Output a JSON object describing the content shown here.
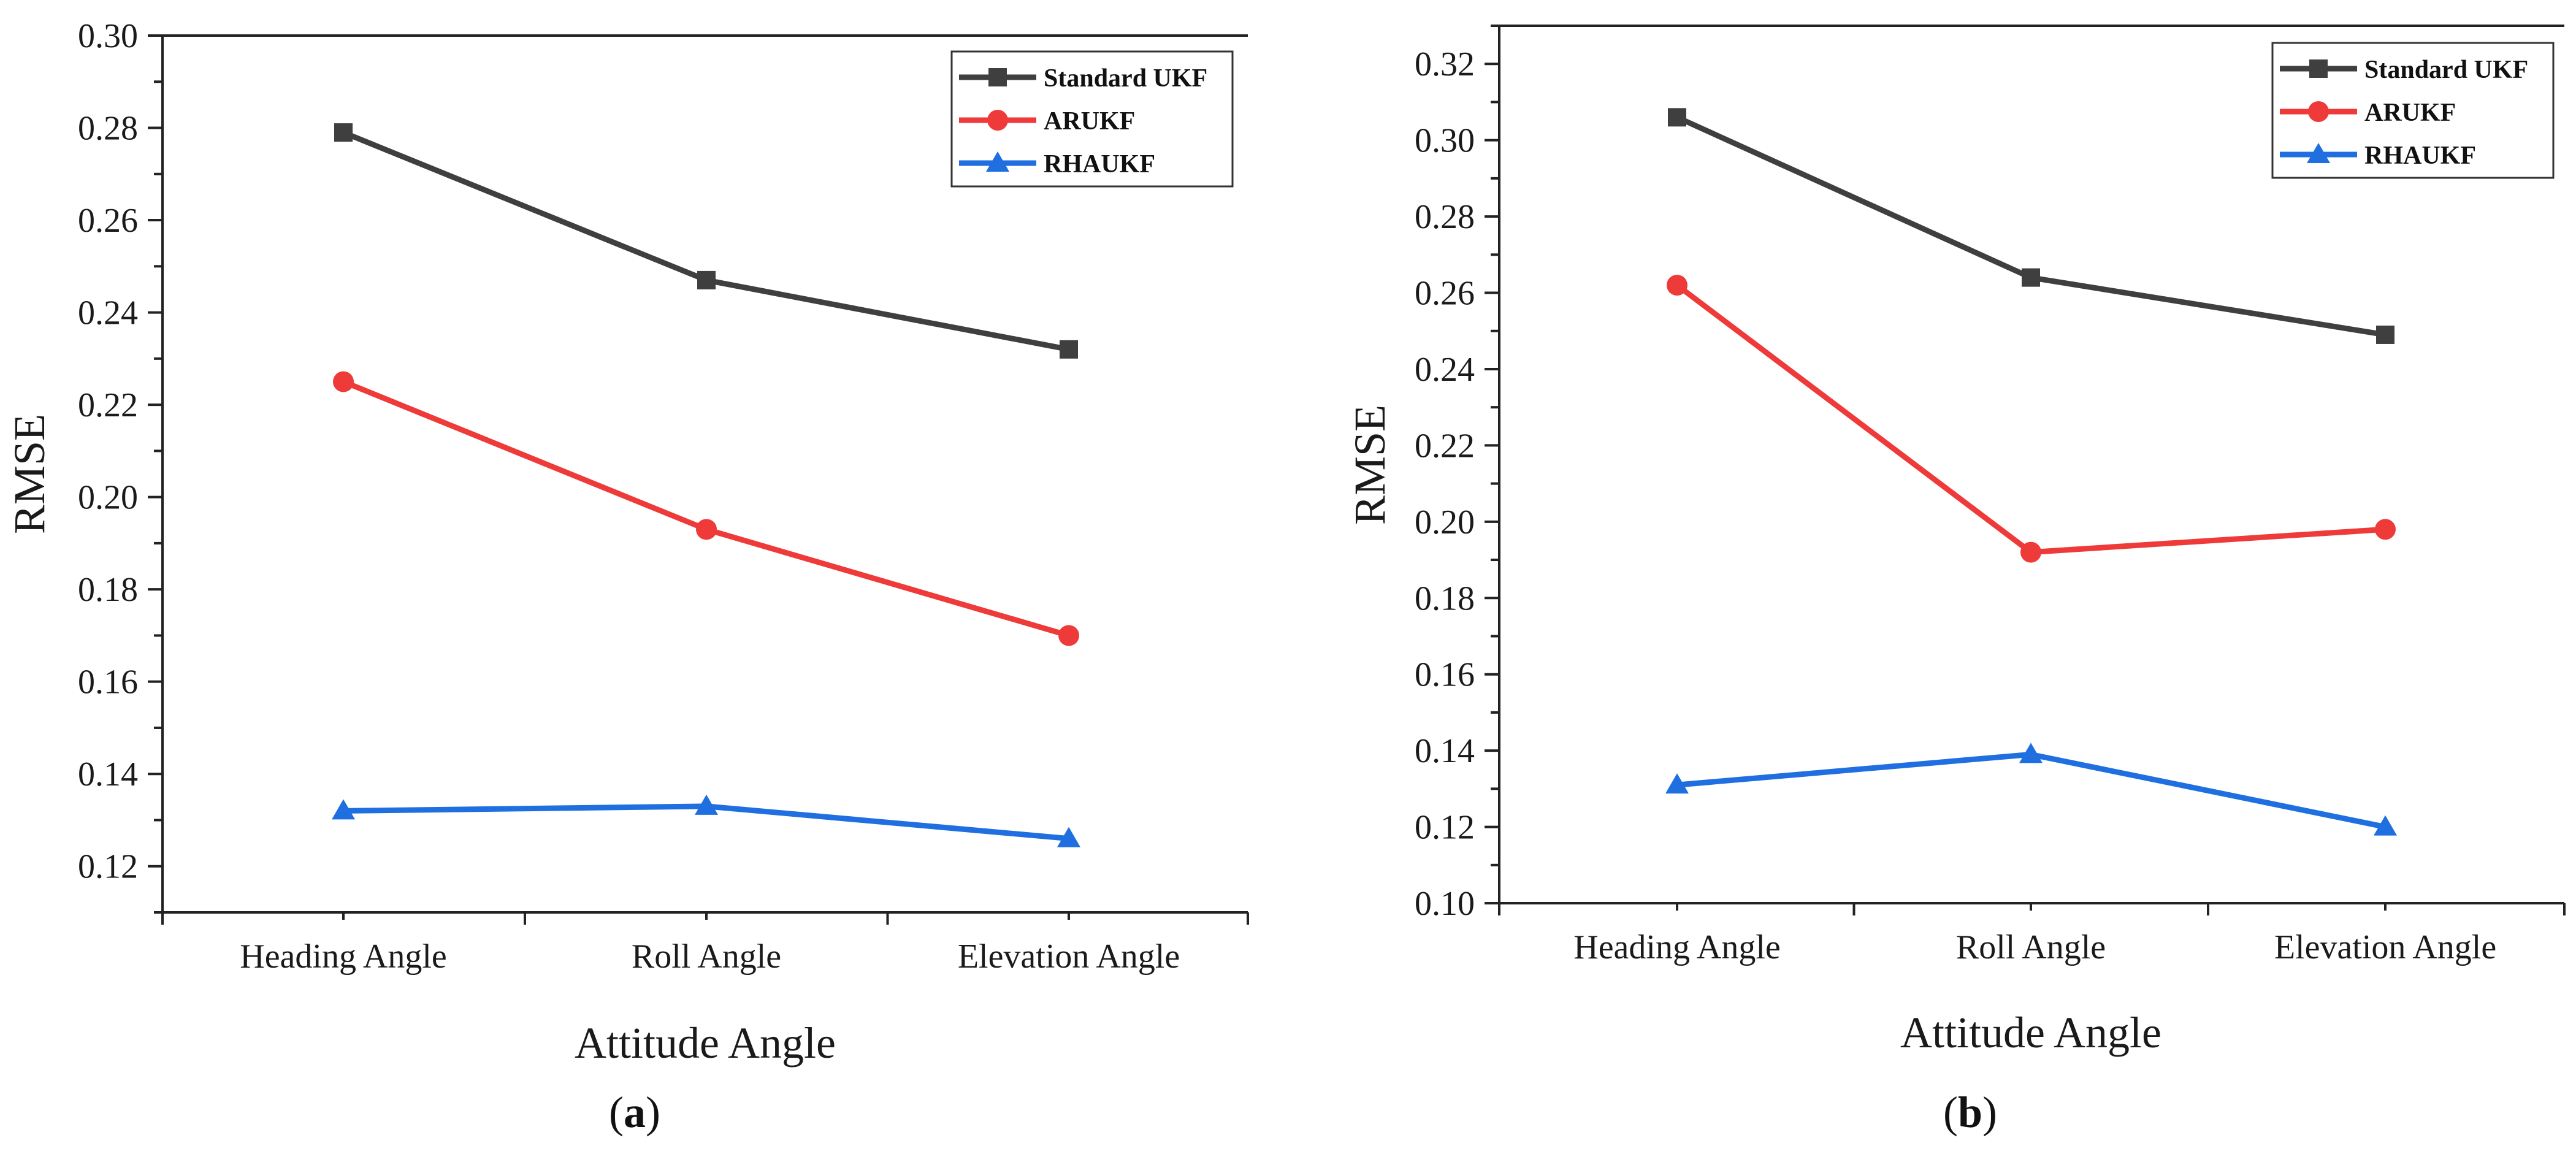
{
  "chart_data": [
    {
      "type": "line",
      "panel": "a",
      "title": "",
      "xlabel": "Attitude Angle",
      "ylabel": "RMSE",
      "categories": [
        "Heading Angle",
        "Roll Angle",
        "Elevation Angle"
      ],
      "ylim": [
        0.11,
        0.3
      ],
      "yticks": [
        "0.12",
        "0.14",
        "0.16",
        "0.18",
        "0.20",
        "0.22",
        "0.24",
        "0.26",
        "0.28",
        "0.30"
      ],
      "legend_position": "top-right",
      "grid": false,
      "series": [
        {
          "name": "Standard UKF",
          "values": [
            0.279,
            0.247,
            0.232
          ],
          "color": "#3f3f3f",
          "marker": "square"
        },
        {
          "name": "ARUKF",
          "values": [
            0.225,
            0.193,
            0.17
          ],
          "color": "#ef3a3a",
          "marker": "circle"
        },
        {
          "name": "RHAUKF",
          "values": [
            0.132,
            0.133,
            0.126
          ],
          "color": "#1f6fe0",
          "marker": "triangle"
        }
      ]
    },
    {
      "type": "line",
      "panel": "b",
      "title": "",
      "xlabel": "Attitude Angle",
      "ylabel": "RMSE",
      "categories": [
        "Heading Angle",
        "Roll Angle",
        "Elevation Angle"
      ],
      "ylim": [
        0.1,
        0.33
      ],
      "yticks": [
        "0.10",
        "0.12",
        "0.14",
        "0.16",
        "0.18",
        "0.20",
        "0.22",
        "0.24",
        "0.26",
        "0.28",
        "0.30",
        "0.32"
      ],
      "legend_position": "top-right",
      "grid": false,
      "series": [
        {
          "name": "Standard UKF",
          "values": [
            0.306,
            0.264,
            0.249
          ],
          "color": "#3f3f3f",
          "marker": "square"
        },
        {
          "name": "ARUKF",
          "values": [
            0.262,
            0.192,
            0.198
          ],
          "color": "#ef3a3a",
          "marker": "circle"
        },
        {
          "name": "RHAUKF",
          "values": [
            0.131,
            0.139,
            0.12
          ],
          "color": "#1f6fe0",
          "marker": "triangle"
        }
      ]
    }
  ],
  "captions": {
    "a": {
      "open": "(",
      "letter": "a",
      "close": ")"
    },
    "b": {
      "open": "(",
      "letter": "b",
      "close": ")"
    }
  }
}
